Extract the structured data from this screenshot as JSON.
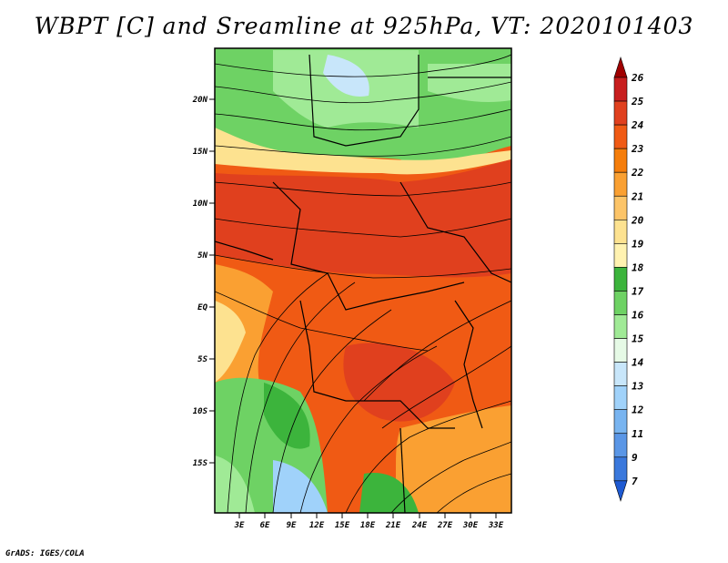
{
  "title": "WBPT [C] and Sreamline at 925hPa, VT: 2020101403",
  "credit": "GrADS: IGES/COLA",
  "map": {
    "lat_labels": [
      "20N",
      "15N",
      "10N",
      "5N",
      "EQ",
      "5S",
      "10S",
      "15S"
    ],
    "lon_labels": [
      "3E",
      "6E",
      "9E",
      "12E",
      "15E",
      "18E",
      "21E",
      "24E",
      "27E",
      "30E",
      "33E"
    ]
  },
  "colorbar": {
    "labels": [
      "26",
      "25",
      "24",
      "23",
      "22",
      "21",
      "20",
      "19",
      "18",
      "17",
      "16",
      "15",
      "14",
      "13",
      "12",
      "11",
      "9",
      "7"
    ],
    "colors": [
      "#a00000",
      "#c81e1e",
      "#e0401e",
      "#f05a14",
      "#f57d0a",
      "#faa032",
      "#fcc468",
      "#fde290",
      "#fff2b0",
      "#3cb43c",
      "#6ed264",
      "#a0ea96",
      "#e6fae6",
      "#c8e6fa",
      "#a0d2fa",
      "#78b4f0",
      "#5a96e6",
      "#3a78dc",
      "#1e5ad2"
    ]
  }
}
